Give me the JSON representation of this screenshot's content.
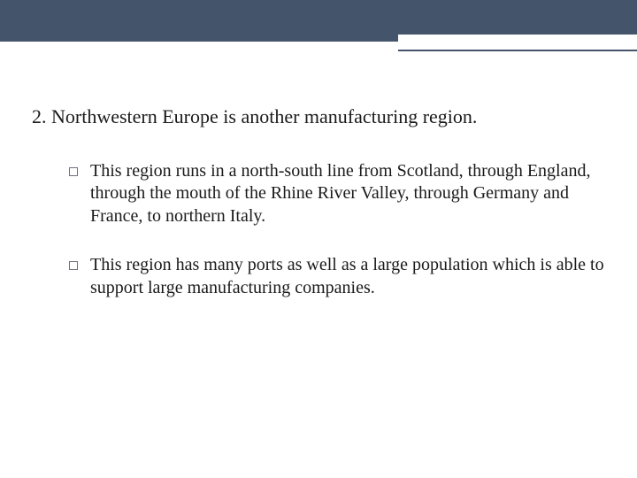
{
  "header": {
    "band_color": "#44546a",
    "line_color": "#44546a",
    "accent_bg": "#ffffff"
  },
  "content": {
    "main_point": "2. Northwestern Europe is another manufacturing region.",
    "sub_items": [
      "This region runs in a north-south line from Scotland, through England, through the mouth of the Rhine River Valley, through Germany and France, to northern Italy.",
      "This region has many ports as well as a large population which is able to support large manufacturing companies."
    ]
  },
  "style": {
    "main_fontsize": 22,
    "sub_fontsize": 20,
    "text_color": "#1a1a1a",
    "bullet_border": "#6b7280",
    "background": "#ffffff",
    "font_family": "Georgia"
  }
}
